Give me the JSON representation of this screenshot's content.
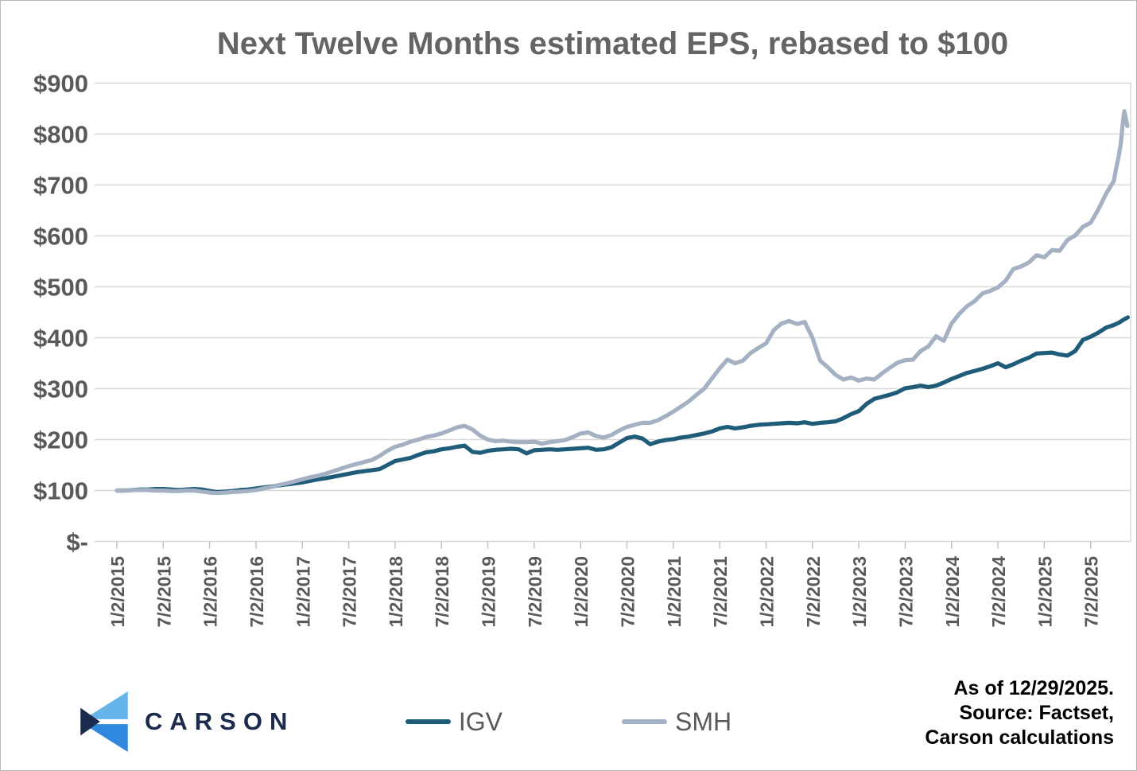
{
  "title": "Next Twelve Months estimated EPS, rebased to $100",
  "footer": {
    "line1": "As of 12/29/2025.",
    "line2": "Source: Factset,",
    "line3": "Carson calculations"
  },
  "logo": {
    "text": "CARSON",
    "mark": "carson-chevron"
  },
  "legend": [
    {
      "label": "IGV",
      "color": "#1f5c7a"
    },
    {
      "label": "SMH",
      "color": "#a3b1c2"
    }
  ],
  "colors": {
    "igv_line": "#1f5c7a",
    "smh_line": "#a3b1c2",
    "grid": "#d9d9d9",
    "tick": "#bfbfbf",
    "axis_text": "#595959",
    "title_text": "#646464",
    "footer_text": "#000000",
    "logo_navy": "#1c2b4d",
    "logo_light_blue": "#66b5ea",
    "logo_blue": "#2f87de",
    "border": "#b8b8b8"
  },
  "chart_data": {
    "type": "line",
    "title": "Next Twelve Months estimated EPS, rebased to $100",
    "xlabel": "",
    "ylabel": "",
    "grid": "horizontal",
    "legend_position": "bottom",
    "x_unit": "months since 1/2/2015",
    "xlim": [
      0,
      131.2
    ],
    "ylim": [
      0,
      900
    ],
    "yticks": {
      "labels": [
        "$900",
        "$800",
        "$700",
        "$600",
        "$500",
        "$400",
        "$300",
        "$200",
        "$100",
        "$-"
      ],
      "values": [
        900,
        800,
        700,
        600,
        500,
        400,
        300,
        200,
        100,
        0
      ]
    },
    "xticks": {
      "labels": [
        "1/2/2015",
        "7/2/2015",
        "1/2/2016",
        "7/2/2016",
        "1/2/2017",
        "7/2/2017",
        "1/2/2018",
        "7/2/2018",
        "1/2/2019",
        "7/2/2019",
        "1/2/2020",
        "7/2/2020",
        "1/2/2021",
        "7/2/2021",
        "1/2/2022",
        "7/2/2022",
        "1/2/2023",
        "7/2/2023",
        "1/2/2024",
        "7/2/2024",
        "1/2/2025",
        "7/2/2025"
      ],
      "t": [
        0,
        6,
        12,
        18,
        24,
        30,
        36,
        42,
        48,
        54,
        60,
        66,
        72,
        78,
        84,
        90,
        96,
        102,
        108,
        114,
        120,
        126
      ]
    },
    "series": [
      {
        "name": "IGV",
        "color": "#1f5c7a",
        "points": [
          [
            0,
            100
          ],
          [
            1,
            100
          ],
          [
            2,
            101
          ],
          [
            3,
            102
          ],
          [
            4,
            102
          ],
          [
            5,
            103
          ],
          [
            6,
            103
          ],
          [
            7,
            102
          ],
          [
            8,
            101
          ],
          [
            9,
            102
          ],
          [
            10,
            103
          ],
          [
            11,
            102
          ],
          [
            12,
            99
          ],
          [
            13,
            97
          ],
          [
            14,
            98
          ],
          [
            15,
            99
          ],
          [
            16,
            101
          ],
          [
            17,
            102
          ],
          [
            18,
            104
          ],
          [
            19,
            106
          ],
          [
            20,
            108
          ],
          [
            21,
            110
          ],
          [
            22,
            112
          ],
          [
            23,
            114
          ],
          [
            24,
            116
          ],
          [
            25,
            119
          ],
          [
            26,
            122
          ],
          [
            27,
            124
          ],
          [
            28,
            127
          ],
          [
            29,
            130
          ],
          [
            30,
            133
          ],
          [
            31,
            136
          ],
          [
            32,
            138
          ],
          [
            33,
            140
          ],
          [
            34,
            142
          ],
          [
            35,
            150
          ],
          [
            36,
            158
          ],
          [
            37,
            161
          ],
          [
            38,
            164
          ],
          [
            39,
            170
          ],
          [
            40,
            175
          ],
          [
            41,
            177
          ],
          [
            42,
            181
          ],
          [
            43,
            183
          ],
          [
            44,
            186
          ],
          [
            45,
            188
          ],
          [
            46,
            176
          ],
          [
            47,
            174
          ],
          [
            48,
            178
          ],
          [
            49,
            180
          ],
          [
            50,
            181
          ],
          [
            51,
            182
          ],
          [
            52,
            181
          ],
          [
            53,
            173
          ],
          [
            54,
            179
          ],
          [
            55,
            180
          ],
          [
            56,
            181
          ],
          [
            57,
            180
          ],
          [
            58,
            181
          ],
          [
            59,
            182
          ],
          [
            60,
            183
          ],
          [
            61,
            184
          ],
          [
            62,
            180
          ],
          [
            63,
            181
          ],
          [
            64,
            185
          ],
          [
            65,
            194
          ],
          [
            66,
            203
          ],
          [
            67,
            206
          ],
          [
            68,
            202
          ],
          [
            69,
            191
          ],
          [
            70,
            196
          ],
          [
            71,
            199
          ],
          [
            72,
            201
          ],
          [
            73,
            204
          ],
          [
            74,
            206
          ],
          [
            75,
            209
          ],
          [
            76,
            212
          ],
          [
            77,
            216
          ],
          [
            78,
            222
          ],
          [
            79,
            225
          ],
          [
            80,
            222
          ],
          [
            81,
            224
          ],
          [
            82,
            227
          ],
          [
            83,
            229
          ],
          [
            84,
            230
          ],
          [
            85,
            231
          ],
          [
            86,
            232
          ],
          [
            87,
            233
          ],
          [
            88,
            232
          ],
          [
            89,
            234
          ],
          [
            90,
            231
          ],
          [
            91,
            233
          ],
          [
            92,
            234
          ],
          [
            93,
            236
          ],
          [
            94,
            242
          ],
          [
            95,
            250
          ],
          [
            96,
            256
          ],
          [
            97,
            270
          ],
          [
            98,
            280
          ],
          [
            99,
            284
          ],
          [
            100,
            288
          ],
          [
            101,
            293
          ],
          [
            102,
            301
          ],
          [
            103,
            303
          ],
          [
            104,
            306
          ],
          [
            105,
            303
          ],
          [
            106,
            306
          ],
          [
            107,
            312
          ],
          [
            108,
            319
          ],
          [
            109,
            325
          ],
          [
            110,
            331
          ],
          [
            111,
            335
          ],
          [
            112,
            339
          ],
          [
            113,
            344
          ],
          [
            114,
            350
          ],
          [
            115,
            342
          ],
          [
            116,
            348
          ],
          [
            117,
            355
          ],
          [
            118,
            361
          ],
          [
            119,
            369
          ],
          [
            120,
            370
          ],
          [
            121,
            371
          ],
          [
            122,
            367
          ],
          [
            123,
            365
          ],
          [
            124,
            374
          ],
          [
            125,
            396
          ],
          [
            126,
            402
          ],
          [
            127,
            410
          ],
          [
            128,
            420
          ],
          [
            129,
            425
          ],
          [
            129.7,
            430
          ],
          [
            130.3,
            436
          ],
          [
            130.8,
            440
          ]
        ]
      },
      {
        "name": "SMH",
        "color": "#a3b1c2",
        "points": [
          [
            0,
            100
          ],
          [
            1,
            100
          ],
          [
            2,
            101
          ],
          [
            3,
            101
          ],
          [
            4,
            101
          ],
          [
            5,
            100
          ],
          [
            6,
            100
          ],
          [
            7,
            99
          ],
          [
            8,
            99
          ],
          [
            9,
            100
          ],
          [
            10,
            100
          ],
          [
            11,
            98
          ],
          [
            12,
            96
          ],
          [
            13,
            95
          ],
          [
            14,
            96
          ],
          [
            15,
            97
          ],
          [
            16,
            98
          ],
          [
            17,
            99
          ],
          [
            18,
            101
          ],
          [
            19,
            104
          ],
          [
            20,
            107
          ],
          [
            21,
            111
          ],
          [
            22,
            114
          ],
          [
            23,
            118
          ],
          [
            24,
            122
          ],
          [
            25,
            126
          ],
          [
            26,
            129
          ],
          [
            27,
            133
          ],
          [
            28,
            138
          ],
          [
            29,
            143
          ],
          [
            30,
            148
          ],
          [
            31,
            152
          ],
          [
            32,
            156
          ],
          [
            33,
            160
          ],
          [
            34,
            168
          ],
          [
            35,
            178
          ],
          [
            36,
            186
          ],
          [
            37,
            190
          ],
          [
            38,
            196
          ],
          [
            39,
            200
          ],
          [
            40,
            205
          ],
          [
            41,
            208
          ],
          [
            42,
            212
          ],
          [
            43,
            218
          ],
          [
            44,
            224
          ],
          [
            45,
            227
          ],
          [
            46,
            220
          ],
          [
            47,
            208
          ],
          [
            48,
            200
          ],
          [
            49,
            197
          ],
          [
            50,
            198
          ],
          [
            51,
            196
          ],
          [
            52,
            195
          ],
          [
            53,
            195
          ],
          [
            54,
            196
          ],
          [
            55,
            192
          ],
          [
            56,
            195
          ],
          [
            57,
            197
          ],
          [
            58,
            199
          ],
          [
            59,
            205
          ],
          [
            60,
            212
          ],
          [
            61,
            214
          ],
          [
            62,
            207
          ],
          [
            63,
            204
          ],
          [
            64,
            209
          ],
          [
            65,
            218
          ],
          [
            66,
            225
          ],
          [
            67,
            229
          ],
          [
            68,
            233
          ],
          [
            69,
            233
          ],
          [
            70,
            238
          ],
          [
            71,
            246
          ],
          [
            72,
            255
          ],
          [
            73,
            265
          ],
          [
            74,
            275
          ],
          [
            75,
            288
          ],
          [
            76,
            300
          ],
          [
            77,
            320
          ],
          [
            78,
            340
          ],
          [
            79,
            357
          ],
          [
            80,
            350
          ],
          [
            81,
            355
          ],
          [
            82,
            370
          ],
          [
            83,
            380
          ],
          [
            84,
            389
          ],
          [
            85,
            415
          ],
          [
            86,
            428
          ],
          [
            87,
            433
          ],
          [
            88,
            427
          ],
          [
            89,
            431
          ],
          [
            90,
            400
          ],
          [
            91,
            355
          ],
          [
            92,
            342
          ],
          [
            93,
            327
          ],
          [
            94,
            318
          ],
          [
            95,
            322
          ],
          [
            96,
            316
          ],
          [
            97,
            320
          ],
          [
            98,
            318
          ],
          [
            99,
            330
          ],
          [
            100,
            341
          ],
          [
            101,
            351
          ],
          [
            102,
            356
          ],
          [
            103,
            357
          ],
          [
            104,
            374
          ],
          [
            105,
            383
          ],
          [
            106,
            403
          ],
          [
            107,
            394
          ],
          [
            108,
            428
          ],
          [
            109,
            447
          ],
          [
            110,
            462
          ],
          [
            111,
            472
          ],
          [
            112,
            487
          ],
          [
            113,
            492
          ],
          [
            114,
            499
          ],
          [
            115,
            512
          ],
          [
            116,
            535
          ],
          [
            117,
            540
          ],
          [
            118,
            548
          ],
          [
            119,
            562
          ],
          [
            120,
            558
          ],
          [
            121,
            572
          ],
          [
            122,
            571
          ],
          [
            123,
            592
          ],
          [
            124,
            601
          ],
          [
            125,
            618
          ],
          [
            126,
            626
          ],
          [
            127,
            652
          ],
          [
            128,
            683
          ],
          [
            129,
            708
          ],
          [
            129.3,
            733
          ],
          [
            129.6,
            754
          ],
          [
            129.9,
            781
          ],
          [
            130.1,
            813
          ],
          [
            130.35,
            845
          ],
          [
            130.75,
            816
          ]
        ]
      }
    ]
  }
}
